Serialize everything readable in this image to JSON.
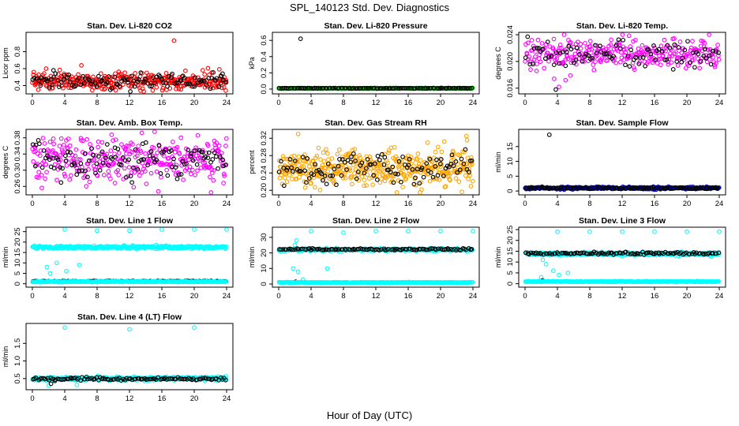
{
  "title": "SPL_140123  Std. Dev. Diagnostics",
  "xlabel": "Hour of Day (UTC)",
  "chart_data": [
    {
      "type": "scatter",
      "title": "Stan. Dev. Li-820 CO2",
      "ylabel": "Licor ppm",
      "xlim": [
        0,
        24
      ],
      "xticks": [
        0,
        4,
        8,
        12,
        16,
        20,
        24
      ],
      "ylim": [
        0.33,
        1.0
      ],
      "yticks": [
        "0.4",
        "0.6",
        "0.8"
      ],
      "yticks_values": [
        0.4,
        0.6,
        0.8
      ],
      "series": [
        {
          "color": "#ff0000",
          "gen": {
            "baseline": 0.45,
            "spread": 0.05,
            "n": 320
          },
          "outliers": [
            {
              "x": 17.5,
              "y": 0.93
            },
            {
              "x": 0.5,
              "y": 0.51
            },
            {
              "x": 1.7,
              "y": 0.6
            },
            {
              "x": 23.9,
              "y": 0.34
            }
          ]
        },
        {
          "color": "#000000",
          "gen": {
            "baseline": 0.45,
            "spread": 0.05,
            "n": 110
          },
          "outliers": [
            {
              "x": 2.6,
              "y": 0.58
            },
            {
              "x": 23.5,
              "y": 0.54
            }
          ]
        }
      ]
    },
    {
      "type": "scatter",
      "title": "Stan. Dev. Li-820 Pressure",
      "ylabel": "kPa",
      "xlim": [
        0,
        24
      ],
      "xticks": [
        0,
        4,
        8,
        12,
        16,
        20,
        24
      ],
      "ylim": [
        -0.03,
        0.67
      ],
      "yticks": [
        "0.0",
        "0.2",
        "0.4",
        "0.6"
      ],
      "yticks_values": [
        0.0,
        0.2,
        0.4,
        0.6
      ],
      "series": [
        {
          "color": "#00cc00",
          "gen": {
            "baseline": 0.01,
            "spread": 0.002,
            "n": 260
          },
          "outliers": []
        },
        {
          "color": "#000000",
          "gen": {
            "baseline": 0.01,
            "spread": 0.002,
            "n": 110
          },
          "outliers": [
            {
              "x": 2.7,
              "y": 0.62
            }
          ]
        }
      ]
    },
    {
      "type": "scatter",
      "title": "Stan. Dev. Li-820 Temp.",
      "ylabel": "degrees C",
      "xlim": [
        0,
        24
      ],
      "xticks": [
        0,
        4,
        8,
        12,
        16,
        20,
        24
      ],
      "ylim": [
        0.0155,
        0.024
      ],
      "yticks": [
        "0.016",
        "0.020",
        "0.024"
      ],
      "yticks_values": [
        0.016,
        0.02,
        0.024
      ],
      "series": [
        {
          "color": "#ff00ff",
          "gen": {
            "baseline": 0.0212,
            "spread": 0.0011,
            "n": 300
          },
          "outliers": [
            {
              "x": 3.6,
              "y": 0.0174
            },
            {
              "x": 4.2,
              "y": 0.0162
            },
            {
              "x": 5.0,
              "y": 0.0172
            },
            {
              "x": 5.6,
              "y": 0.0179
            }
          ]
        },
        {
          "color": "#000000",
          "gen": {
            "baseline": 0.0212,
            "spread": 0.0009,
            "n": 90
          },
          "outliers": [
            {
              "x": 3.8,
              "y": 0.0158
            }
          ]
        }
      ]
    },
    {
      "type": "scatter",
      "title": "Stan. Dev. Amb. Box Temp.",
      "ylabel": "degrees C",
      "xlim": [
        0,
        24
      ],
      "xticks": [
        0,
        4,
        8,
        12,
        16,
        20,
        24
      ],
      "ylim": [
        0.245,
        0.395
      ],
      "yticks": [
        "0.26",
        "0.30",
        "0.34",
        "0.38"
      ],
      "yticks_values": [
        0.26,
        0.3,
        0.34,
        0.38
      ],
      "series": [
        {
          "color": "#ff00ff",
          "gen": {
            "baseline": 0.325,
            "spread": 0.028,
            "n": 330
          },
          "outliers": []
        },
        {
          "color": "#000000",
          "gen": {
            "baseline": 0.325,
            "spread": 0.022,
            "n": 110
          },
          "outliers": []
        }
      ]
    },
    {
      "type": "scatter",
      "title": "Stan. Dev. Gas Stream RH",
      "ylabel": "percent",
      "xlim": [
        0,
        24
      ],
      "xticks": [
        0,
        4,
        8,
        12,
        16,
        20,
        24
      ],
      "ylim": [
        0.195,
        0.335
      ],
      "yticks": [
        "0.20",
        "0.24",
        "0.28",
        "0.32"
      ],
      "yticks_values": [
        0.2,
        0.24,
        0.28,
        0.32
      ],
      "series": [
        {
          "color": "#ffa500",
          "gen": {
            "baseline": 0.25,
            "spread": 0.02,
            "n": 420
          },
          "outliers": [
            {
              "x": 2.4,
              "y": 0.33
            },
            {
              "x": 23.2,
              "y": 0.325
            },
            {
              "x": 18.4,
              "y": 0.31
            }
          ]
        },
        {
          "color": "#000000",
          "gen": {
            "baseline": 0.25,
            "spread": 0.018,
            "n": 110
          },
          "outliers": []
        }
      ]
    },
    {
      "type": "scatter",
      "title": "Stan. Dev. Sample Flow",
      "ylabel": "ml/min",
      "xlim": [
        0,
        24
      ],
      "xticks": [
        0,
        4,
        8,
        12,
        16,
        20,
        24
      ],
      "ylim": [
        -0.5,
        20
      ],
      "yticks": [
        "0",
        "5",
        "10",
        "15"
      ],
      "yticks_values": [
        0,
        5,
        10,
        15
      ],
      "series": [
        {
          "color": "#0000cd",
          "gen": {
            "baseline": 1.0,
            "spread": 0.2,
            "n": 300
          },
          "outliers": []
        },
        {
          "color": "#000000",
          "gen": {
            "baseline": 1.0,
            "spread": 0.15,
            "n": 110
          },
          "outliers": [
            {
              "x": 3.0,
              "y": 19.0
            }
          ]
        }
      ]
    },
    {
      "type": "scatter",
      "title": "Stan. Dev. Line 1 Flow",
      "ylabel": "ml/min",
      "xlim": [
        0,
        24
      ],
      "xticks": [
        0,
        4,
        8,
        12,
        16,
        20,
        24
      ],
      "ylim": [
        -0.5,
        26
      ],
      "yticks": [
        "0",
        "5",
        "10",
        "15",
        "20",
        "25"
      ],
      "yticks_values": [
        0,
        5,
        10,
        15,
        20,
        25
      ],
      "series": [
        {
          "color": "#00ffff",
          "gen": {
            "baseline": 17.5,
            "spread": 0.35,
            "n": 300
          },
          "outliers": [
            {
              "x": 4.0,
              "y": 26
            },
            {
              "x": 8.0,
              "y": 25.5
            },
            {
              "x": 12.0,
              "y": 25.5
            },
            {
              "x": 16.0,
              "y": 26
            },
            {
              "x": 20.0,
              "y": 26
            },
            {
              "x": 24.0,
              "y": 26
            },
            {
              "x": 1.8,
              "y": 8.0
            },
            {
              "x": 3.0,
              "y": 10.0
            },
            {
              "x": 4.2,
              "y": 6.0
            },
            {
              "x": 5.8,
              "y": 9.0
            },
            {
              "x": 2.2,
              "y": 5.0
            }
          ]
        },
        {
          "color": "#000000",
          "gen": {
            "baseline": 1.2,
            "spread": 0.1,
            "n": 110
          },
          "outliers": []
        },
        {
          "color": "#00ffff",
          "gen": {
            "baseline": 1.0,
            "spread": 0.1,
            "n": 260
          },
          "outliers": []
        }
      ]
    },
    {
      "type": "scatter",
      "title": "Stan. Dev. Line 2 Flow",
      "ylabel": "ml/min",
      "xlim": [
        0,
        24
      ],
      "xticks": [
        0,
        4,
        8,
        12,
        16,
        20,
        24
      ],
      "ylim": [
        -0.5,
        35
      ],
      "yticks": [
        "0",
        "10",
        "20",
        "30"
      ],
      "yticks_values": [
        0,
        10,
        20,
        30
      ],
      "series": [
        {
          "color": "#00ffff",
          "gen": {
            "baseline": 22.0,
            "spread": 0.4,
            "n": 300
          },
          "outliers": [
            {
              "x": 4.0,
              "y": 34
            },
            {
              "x": 8.0,
              "y": 33
            },
            {
              "x": 12.0,
              "y": 34
            },
            {
              "x": 16.0,
              "y": 34
            },
            {
              "x": 20.0,
              "y": 34
            },
            {
              "x": 24.0,
              "y": 34
            },
            {
              "x": 2.0,
              "y": 25
            },
            {
              "x": 2.2,
              "y": 28
            },
            {
              "x": 1.8,
              "y": 10
            },
            {
              "x": 2.4,
              "y": 8
            },
            {
              "x": 6.0,
              "y": 10
            },
            {
              "x": 3.0,
              "y": 3
            }
          ]
        },
        {
          "color": "#000000",
          "gen": {
            "baseline": 22.3,
            "spread": 0.3,
            "n": 110
          },
          "outliers": [
            {
              "x": 2.1,
              "y": 1.5
            }
          ]
        },
        {
          "color": "#00ffff",
          "gen": {
            "baseline": 1.0,
            "spread": 0.1,
            "n": 260
          },
          "outliers": []
        }
      ]
    },
    {
      "type": "scatter",
      "title": "Stan. Dev. Line 3 Flow",
      "ylabel": "ml/min",
      "xlim": [
        0,
        24
      ],
      "xticks": [
        0,
        4,
        8,
        12,
        16,
        20,
        24
      ],
      "ylim": [
        -0.5,
        25
      ],
      "yticks": [
        "0",
        "5",
        "10",
        "15",
        "20",
        "25"
      ],
      "yticks_values": [
        0,
        5,
        10,
        15,
        20,
        25
      ],
      "series": [
        {
          "color": "#00ffff",
          "gen": {
            "baseline": 13.8,
            "spread": 0.35,
            "n": 300
          },
          "outliers": [
            {
              "x": 4.0,
              "y": 24
            },
            {
              "x": 8.0,
              "y": 24
            },
            {
              "x": 12.0,
              "y": 24
            },
            {
              "x": 16.0,
              "y": 24
            },
            {
              "x": 20.0,
              "y": 24
            },
            {
              "x": 24.0,
              "y": 24
            },
            {
              "x": 2.2,
              "y": 11
            },
            {
              "x": 2.6,
              "y": 9
            },
            {
              "x": 3.5,
              "y": 6
            },
            {
              "x": 4.2,
              "y": 4
            },
            {
              "x": 5.3,
              "y": 5
            },
            {
              "x": 2.0,
              "y": 3
            }
          ]
        },
        {
          "color": "#000000",
          "gen": {
            "baseline": 14.0,
            "spread": 0.3,
            "n": 110
          },
          "outliers": [
            {
              "x": 2.2,
              "y": 1.5
            }
          ]
        },
        {
          "color": "#00ffff",
          "gen": {
            "baseline": 1.0,
            "spread": 0.1,
            "n": 260
          },
          "outliers": []
        }
      ]
    },
    {
      "type": "scatter",
      "title": "Stan. Dev. Line 4 (LT) Flow",
      "ylabel": "ml/min",
      "xlim": [
        0,
        24
      ],
      "xticks": [
        0,
        4,
        8,
        12,
        16,
        20,
        24
      ],
      "ylim": [
        0.25,
        2.0
      ],
      "yticks": [
        "0.5",
        "1.0",
        "1.5"
      ],
      "yticks_values": [
        0.5,
        1.0,
        1.5
      ],
      "series": [
        {
          "color": "#00ffff",
          "gen": {
            "baseline": 0.5,
            "spread": 0.025,
            "n": 300
          },
          "outliers": [
            {
              "x": 4.0,
              "y": 1.95
            },
            {
              "x": 12.0,
              "y": 1.9
            },
            {
              "x": 20.0,
              "y": 1.95
            },
            {
              "x": 2.0,
              "y": 0.3
            },
            {
              "x": 5.5,
              "y": 0.32
            }
          ]
        },
        {
          "color": "#000000",
          "gen": {
            "baseline": 0.49,
            "spread": 0.02,
            "n": 110
          },
          "outliers": [
            {
              "x": 2.3,
              "y": 0.35
            }
          ]
        }
      ]
    }
  ]
}
